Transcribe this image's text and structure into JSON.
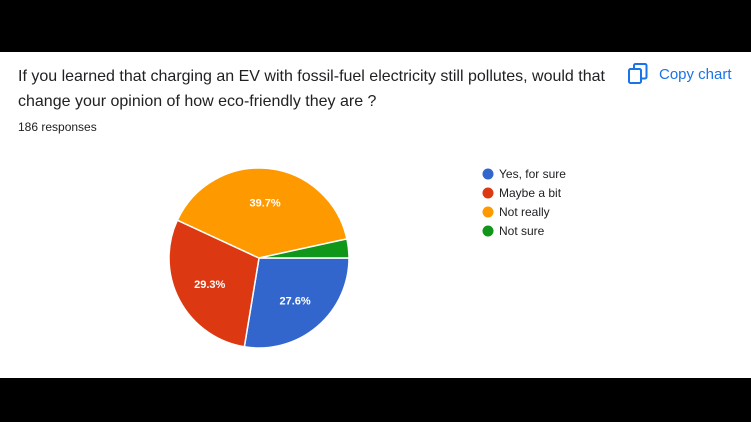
{
  "question": "If you learned that charging an EV with fossil-fuel electricity still pollutes, would that change your opinion of how eco-friendly they are ?",
  "responses_text": "186 responses",
  "copy_button": {
    "label": "Copy chart",
    "icon": "copy-icon"
  },
  "colors": {
    "accent": "#1a73e8"
  },
  "chart_data": {
    "type": "pie",
    "categories": [
      "Yes, for sure",
      "Maybe a bit",
      "Not really",
      "Not sure"
    ],
    "values": [
      27.6,
      29.3,
      39.7,
      3.4
    ],
    "labels": [
      "27.6%",
      "29.3%",
      "39.7%",
      ""
    ],
    "colors": [
      "#3366cc",
      "#dc3912",
      "#ff9900",
      "#109618"
    ],
    "legend_position": "right"
  }
}
